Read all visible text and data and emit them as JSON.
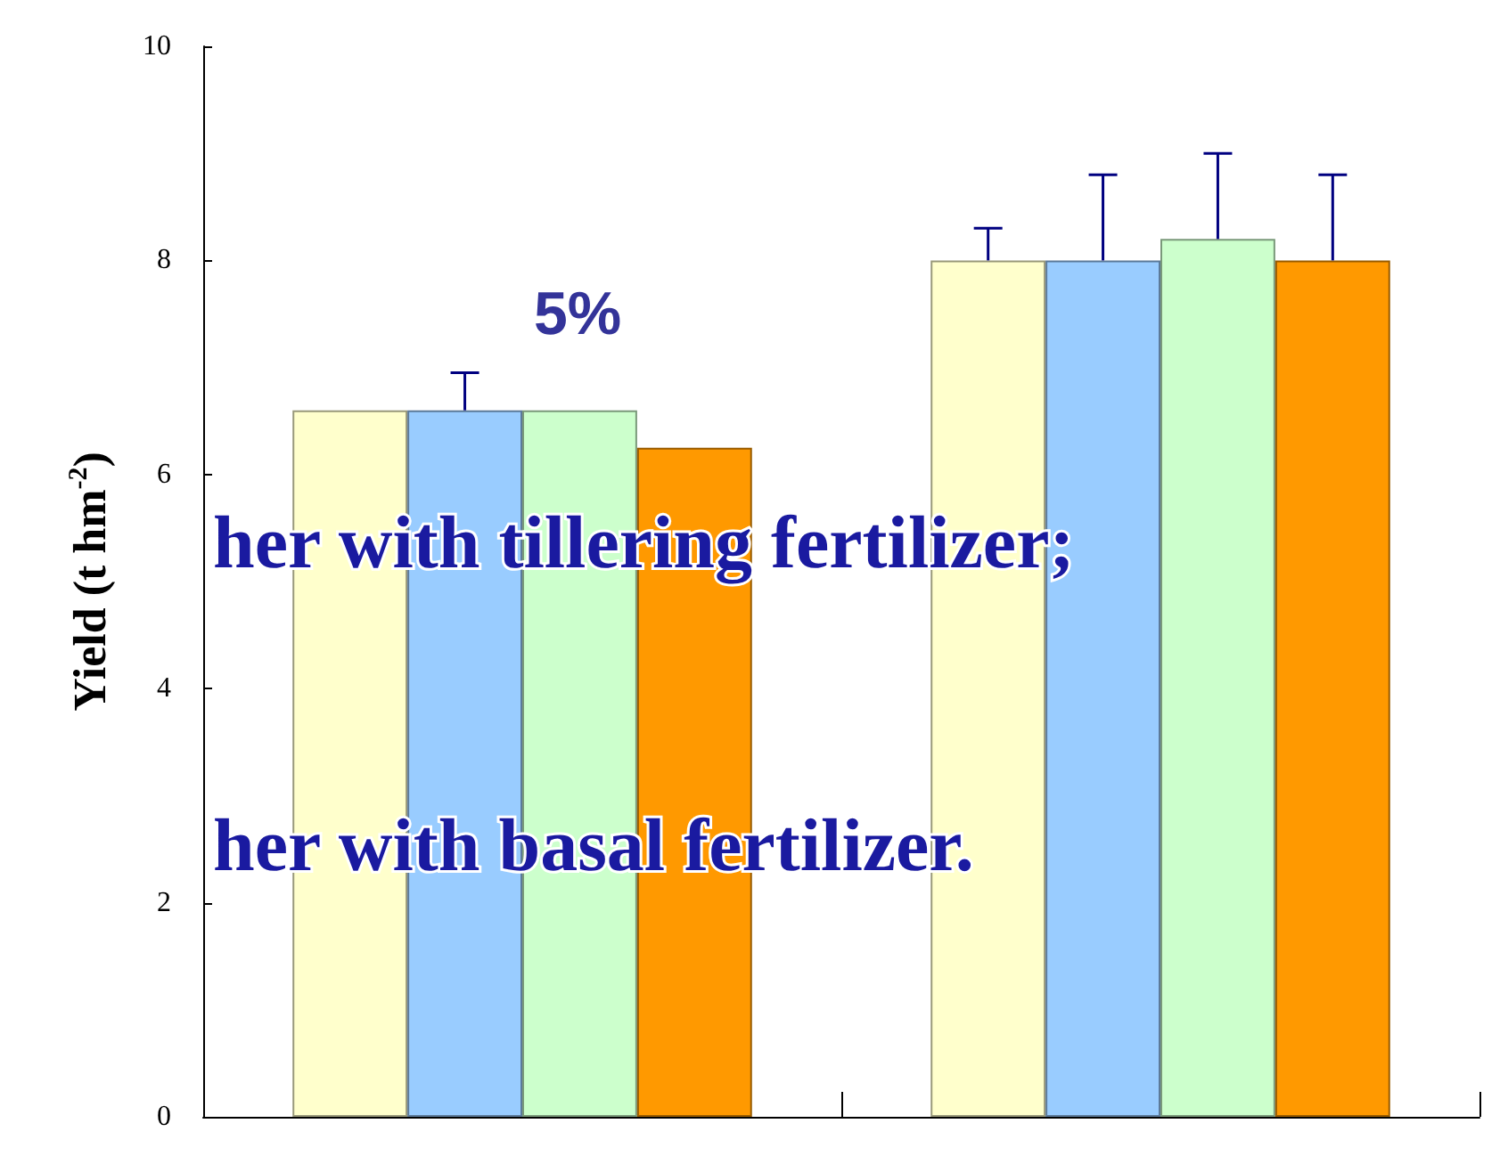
{
  "chart_data": {
    "type": "bar",
    "ylabel": "Yield (t hm$^{-2}$)",
    "categories": [
      null,
      null
    ],
    "series": [
      {
        "color": "#ffffcc",
        "values": [
          6.6,
          8.0
        ],
        "errors": [
          null,
          0.3
        ]
      },
      {
        "color": "#99ccff",
        "values": [
          6.6,
          8.0
        ],
        "errors": [
          0.35,
          0.8
        ]
      },
      {
        "color": "#ccffcc",
        "values": [
          6.6,
          8.2
        ],
        "errors": [
          null,
          0.8
        ]
      },
      {
        "color": "#ff9900",
        "values": [
          6.25,
          8.0
        ],
        "errors": [
          null,
          0.8
        ]
      }
    ],
    "ylim": [
      0,
      10
    ],
    "yticks": [
      0,
      2,
      4,
      6,
      8,
      10
    ],
    "grid": false,
    "annotations": [
      "5%",
      "her with tillering fertilizer;",
      "her with basal fertilizer."
    ]
  }
}
